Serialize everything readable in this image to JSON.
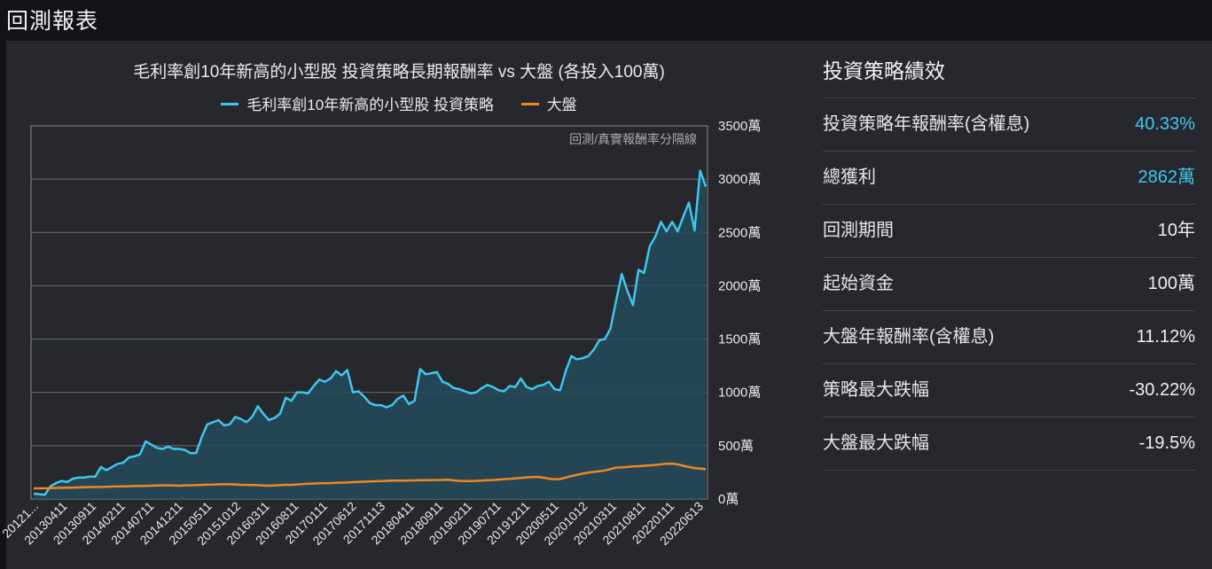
{
  "header": {
    "title": "回測報表"
  },
  "chart_data": {
    "type": "area",
    "title": "毛利率創10年新高的小型股 投資策略長期報酬率 vs 大盤 (各投入100萬)",
    "annotation": "回測/真實報酬率分隔線",
    "y_unit": "萬",
    "ylim": [
      0,
      3500
    ],
    "y_ticks": [
      "3500萬",
      "3000萬",
      "2500萬",
      "2000萬",
      "1500萬",
      "1000萬",
      "500萬",
      "0萬"
    ],
    "x_ticks": [
      "20121...",
      "20130411",
      "20130911",
      "20140211",
      "20140711",
      "20141211",
      "20150511",
      "20151012",
      "20160311",
      "20160811",
      "20170111",
      "20170612",
      "20171113",
      "20180411",
      "20180911",
      "20190211",
      "20190711",
      "20191211",
      "20200511",
      "20201012",
      "20210311",
      "20210811",
      "20220111",
      "20220613"
    ],
    "grid": true,
    "legend_position": "top",
    "series": [
      {
        "name": "毛利率創10年新高的小型股 投資策略",
        "color": "#3ec7ee",
        "fill": "#244a5a",
        "values": [
          50,
          45,
          40,
          120,
          150,
          170,
          160,
          190,
          200,
          200,
          210,
          210,
          300,
          270,
          300,
          330,
          340,
          390,
          400,
          420,
          540,
          510,
          480,
          470,
          490,
          470,
          470,
          460,
          430,
          430,
          580,
          700,
          720,
          740,
          690,
          700,
          770,
          750,
          720,
          770,
          870,
          800,
          740,
          760,
          800,
          950,
          920,
          1000,
          1000,
          990,
          1060,
          1120,
          1100,
          1130,
          1200,
          1160,
          1210,
          1000,
          1010,
          960,
          900,
          880,
          880,
          860,
          880,
          940,
          970,
          890,
          920,
          1220,
          1170,
          1180,
          1190,
          1100,
          1080,
          1040,
          1030,
          1010,
          990,
          1000,
          1040,
          1070,
          1050,
          1020,
          1010,
          1060,
          1050,
          1130,
          1050,
          1030,
          1060,
          1070,
          1100,
          1030,
          1020,
          1200,
          1340,
          1310,
          1320,
          1340,
          1400,
          1490,
          1500,
          1600,
          1860,
          2110,
          1950,
          1820,
          2150,
          2120,
          2370,
          2460,
          2600,
          2510,
          2600,
          2510,
          2650,
          2780,
          2520,
          3080,
          2930
        ]
      },
      {
        "name": "大盤",
        "color": "#f0861f",
        "values": [
          100,
          100,
          100,
          102,
          104,
          105,
          106,
          107,
          108,
          110,
          112,
          113,
          112,
          115,
          116,
          117,
          118,
          120,
          121,
          123,
          123,
          125,
          127,
          128,
          128,
          126,
          125,
          128,
          129,
          130,
          132,
          134,
          135,
          137,
          139,
          138,
          136,
          133,
          132,
          131,
          130,
          126,
          125,
          126,
          130,
          134,
          132,
          136,
          140,
          143,
          145,
          147,
          148,
          149,
          151,
          153,
          155,
          158,
          160,
          162,
          164,
          166,
          168,
          170,
          172,
          173,
          172,
          174,
          175,
          176,
          177,
          178,
          178,
          179,
          180,
          175,
          170,
          168,
          168,
          170,
          173,
          176,
          178,
          182,
          186,
          189,
          193,
          197,
          201,
          205,
          208,
          200,
          190,
          185,
          188,
          200,
          215,
          226,
          238,
          246,
          254,
          260,
          268,
          280,
          295,
          296,
          300,
          305,
          308,
          312,
          315,
          320,
          325,
          330,
          332,
          325,
          312,
          300,
          290,
          285,
          280
        ]
      }
    ]
  },
  "stats": {
    "title": "投資策略績效",
    "rows": [
      {
        "label": "投資策略年報酬率(含權息)",
        "value": "40.33%",
        "highlight": true
      },
      {
        "label": "總獲利",
        "value": "2862萬",
        "highlight": true
      },
      {
        "label": "回測期間",
        "value": "10年",
        "highlight": false
      },
      {
        "label": "起始資金",
        "value": "100萬",
        "highlight": false
      },
      {
        "label": "大盤年報酬率(含權息)",
        "value": "11.12%",
        "highlight": false
      },
      {
        "label": "策略最大跌幅",
        "value": "-30.22%",
        "highlight": false
      },
      {
        "label": "大盤最大跌幅",
        "value": "-19.5%",
        "highlight": false
      }
    ]
  }
}
